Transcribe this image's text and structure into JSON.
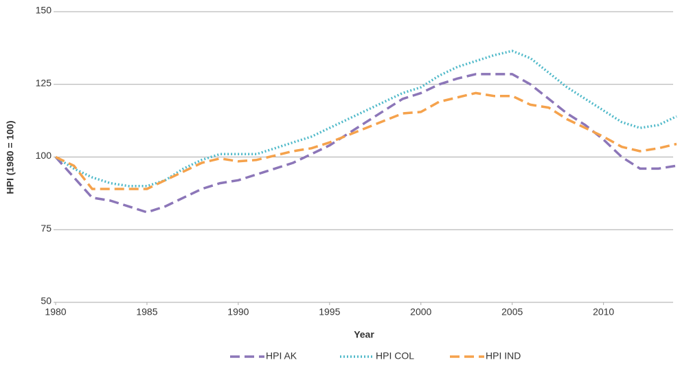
{
  "chart_data": {
    "type": "line",
    "x_label": "Year",
    "y_label": "HPI (1980 = 100)",
    "x": [
      1980,
      1981,
      1982,
      1983,
      1984,
      1985,
      1986,
      1987,
      1988,
      1989,
      1990,
      1991,
      1992,
      1993,
      1994,
      1995,
      1996,
      1997,
      1998,
      1999,
      2000,
      2001,
      2002,
      2003,
      2004,
      2005,
      2006,
      2007,
      2008,
      2009,
      2010,
      2011,
      2012,
      2013,
      2014
    ],
    "xlim": [
      1980,
      2014
    ],
    "xticks": [
      1980,
      1985,
      1990,
      1995,
      2000,
      2005,
      2010
    ],
    "ylim": [
      50,
      150
    ],
    "yticks": [
      50,
      75,
      100,
      125,
      150
    ],
    "grid": true,
    "legend": "bottom",
    "series": [
      {
        "name": "HPI AK",
        "color": "#8c76b8",
        "dash": "dashed",
        "values": [
          100,
          93,
          86,
          85,
          83,
          81,
          83,
          86,
          89,
          91,
          92,
          94,
          96,
          98,
          101,
          104,
          108,
          112,
          116,
          120,
          122,
          125,
          127,
          128.5,
          128.5,
          128.5,
          125,
          120,
          115,
          111,
          106,
          100,
          96,
          96,
          97
        ]
      },
      {
        "name": "HPI COL",
        "color": "#4fb9c9",
        "dash": "dotted",
        "values": [
          100,
          96,
          93,
          91,
          90,
          90,
          92,
          96,
          99,
          101,
          101,
          101,
          103,
          105,
          107,
          110,
          113,
          116,
          119,
          122,
          124,
          128,
          131,
          133,
          135,
          136.5,
          134,
          129,
          124,
          120,
          116,
          112,
          110,
          111,
          114
        ]
      },
      {
        "name": "HPI IND",
        "color": "#f5a24c",
        "dash": "dashed",
        "values": [
          100,
          97,
          89,
          89,
          89,
          89,
          92,
          95,
          98,
          99.5,
          98.5,
          99,
          100.5,
          102,
          103,
          105,
          107.5,
          110,
          112.5,
          115,
          115.5,
          119,
          120.5,
          122,
          121,
          121,
          118,
          117,
          113,
          110,
          107,
          103.5,
          102,
          103,
          104.5
        ]
      }
    ]
  }
}
